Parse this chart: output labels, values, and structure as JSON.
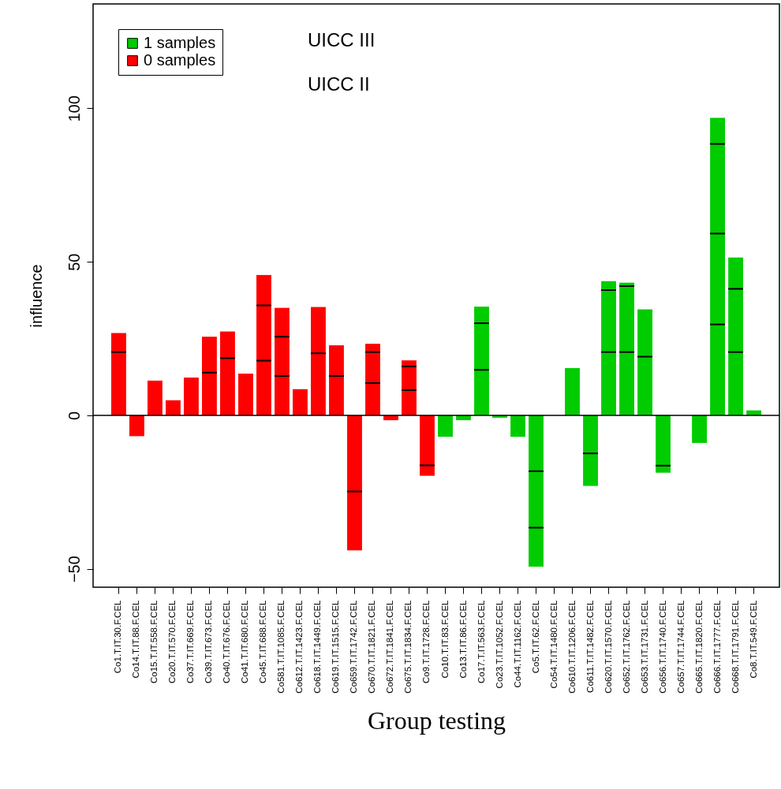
{
  "chart_data": {
    "type": "bar",
    "stacked": true,
    "xlabel": "Group testing",
    "ylabel": "influence",
    "categories": [
      "Co1.T.IT.30.F.CEL",
      "Co14.T.IT.88.F.CEL",
      "Co15.T.IT.558.F.CEL",
      "Co20.T.IT.570.F.CEL",
      "Co37.T.IT.669.F.CEL",
      "Co39.T.IT.673.F.CEL",
      "Co40.T.IT.676.F.CEL",
      "Co41.T.IT.680.F.CEL",
      "Co45.T.IT.688.F.CEL",
      "Co581.T.IT.1085.F.CEL",
      "Co612.T.IT.1423.F.CEL",
      "Co618.T.IT.1449.F.CEL",
      "Co619.T.IT.1515.F.CEL",
      "Co659.T.IT.1742.F.CEL",
      "Co670.T.IT.1821.F.CEL",
      "Co672.T.IT.1841.F.CEL",
      "Co675.T.IT.1834.F.CEL",
      "Co9.T.IT.1728.F.CEL",
      "Co10.T.IT.83.F.CEL",
      "Co13.T.IT.86.F.CEL",
      "Co17.T.IT.563.F.CEL",
      "Co23.T.IT.1052.F.CEL",
      "Co44.T.IT.1162.F.CEL",
      "Co5.T.IT.62.F.CEL",
      "Co54.T.IT.1480.F.CEL",
      "Co610.T.IT.1206.F.CEL",
      "Co611.T.IT.1482.F.CEL",
      "Co620.T.IT.1570.F.CEL",
      "Co652.T.IT.1762.F.CEL",
      "Co653.T.IT.1731.F.CEL",
      "Co656.T.IT.1740.F.CEL",
      "Co657.T.IT.1744.F.CEL",
      "Co665.T.IT.1820.F.CEL",
      "Co666.T.IT.1777.F.CEL",
      "Co668.T.IT.1791.F.CEL",
      "Co8.T.IT.549.F.CEL"
    ],
    "series": [
      {
        "name": "1 samples",
        "color": "#00cc00",
        "values": [
          null,
          null,
          null,
          null,
          null,
          null,
          null,
          null,
          null,
          null,
          null,
          null,
          null,
          null,
          null,
          null,
          null,
          null,
          -7.0,
          -1.6,
          14.8,
          -0.8,
          -7.0,
          -18.2,
          0,
          15.4,
          -12.4,
          20.6,
          20.6,
          19.1,
          -16.4,
          0,
          -9.0,
          29.6,
          20.6,
          1.6
        ]
      },
      {
        "color": "#00cc00",
        "values": [
          null,
          null,
          null,
          null,
          null,
          null,
          null,
          null,
          null,
          null,
          null,
          null,
          null,
          null,
          null,
          null,
          null,
          null,
          null,
          null,
          15.2,
          null,
          null,
          -18.4,
          null,
          null,
          -10.6,
          20.2,
          21.5,
          15.4,
          -2.3,
          null,
          null,
          29.6,
          20.6,
          null
        ]
      },
      {
        "color": "#00cc00",
        "values": [
          null,
          null,
          null,
          null,
          null,
          null,
          null,
          null,
          null,
          null,
          null,
          null,
          null,
          null,
          null,
          null,
          null,
          null,
          null,
          null,
          5.4,
          null,
          null,
          -12.7,
          null,
          null,
          null,
          2.9,
          1.1,
          null,
          null,
          null,
          null,
          29.2,
          10.2,
          null
        ]
      },
      {
        "color": "#00cc00",
        "values": [
          null,
          null,
          null,
          null,
          null,
          null,
          null,
          null,
          null,
          null,
          null,
          null,
          null,
          null,
          null,
          null,
          null,
          null,
          null,
          null,
          null,
          null,
          null,
          null,
          null,
          null,
          null,
          null,
          null,
          null,
          null,
          null,
          null,
          8.5,
          null,
          null
        ]
      },
      {
        "name": "0 samples",
        "color": "#ff0000",
        "values": [
          20.6,
          -6.8,
          11.3,
          4.9,
          12.3,
          13.9,
          18.6,
          13.6,
          17.8,
          12.8,
          8.5,
          20.2,
          12.8,
          -24.8,
          10.5,
          -1.6,
          8.2,
          -16.3,
          null,
          null,
          null,
          null,
          null,
          null,
          null,
          null,
          null,
          null,
          null,
          null,
          null,
          null,
          null,
          null,
          null,
          null
        ]
      },
      {
        "color": "#ff0000",
        "values": [
          6.2,
          null,
          null,
          null,
          null,
          11.7,
          8.7,
          null,
          18.0,
          12.8,
          null,
          15.1,
          10.0,
          -19.2,
          10.1,
          null,
          7.7,
          -3.4,
          null,
          null,
          null,
          null,
          null,
          null,
          null,
          null,
          null,
          null,
          null,
          null,
          null,
          null,
          null,
          null,
          null,
          null
        ]
      },
      {
        "color": "#ff0000",
        "values": [
          null,
          null,
          null,
          null,
          null,
          null,
          null,
          null,
          9.9,
          9.4,
          null,
          null,
          null,
          null,
          2.7,
          null,
          2.0,
          null,
          null,
          null,
          null,
          null,
          null,
          null,
          null,
          null,
          null,
          null,
          null,
          null,
          null,
          null,
          null,
          null,
          null,
          null
        ]
      }
    ],
    "ylim": [
      -56,
      134
    ],
    "yticks": [
      -50,
      0,
      50,
      100
    ],
    "ref_lines": [
      {
        "axis": "y",
        "value": 0,
        "color": "#000000"
      }
    ],
    "legend": "top left",
    "annotations": [
      "UICC III",
      "UICC II"
    ]
  }
}
